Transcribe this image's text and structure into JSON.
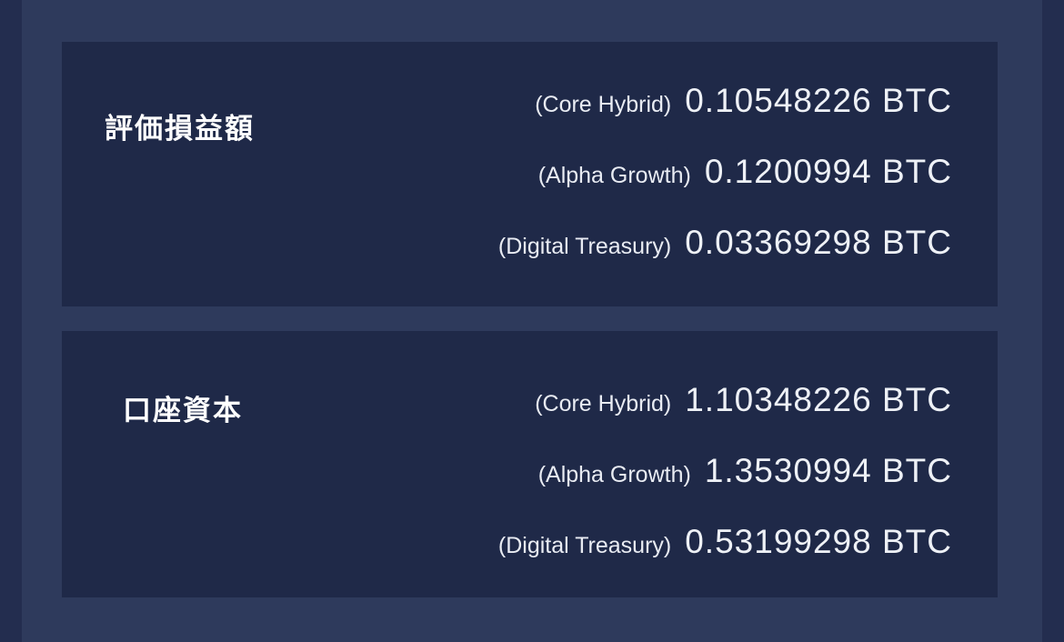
{
  "colors": {
    "page_background": "#2e3a5c",
    "edge_strip": "#232d4f",
    "card_background": "#1f2948",
    "title_text": "#ffffff",
    "row_text": "#eef1f6"
  },
  "cards": [
    {
      "title": "評価損益額",
      "rows": [
        {
          "label": "(Core Hybrid)",
          "value": "0.10548226 BTC"
        },
        {
          "label": "(Alpha Growth)",
          "value": "0.1200994 BTC"
        },
        {
          "label": "(Digital Treasury)",
          "value": "0.03369298 BTC"
        }
      ]
    },
    {
      "title": "口座資本",
      "rows": [
        {
          "label": "(Core Hybrid)",
          "value": "1.10348226 BTC"
        },
        {
          "label": "(Alpha Growth)",
          "value": "1.3530994 BTC"
        },
        {
          "label": "(Digital Treasury)",
          "value": "0.53199298 BTC"
        }
      ]
    }
  ]
}
